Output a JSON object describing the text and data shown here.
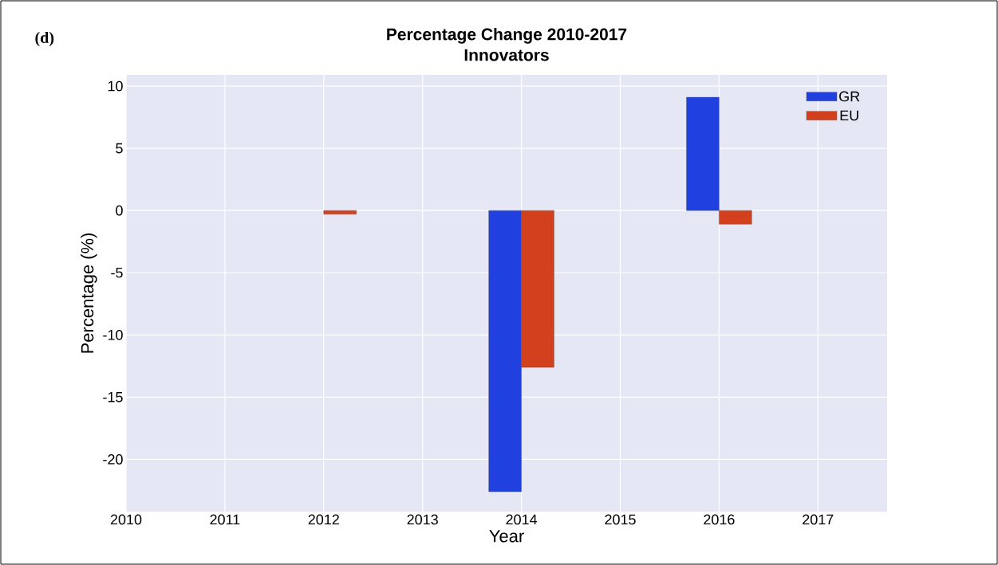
{
  "chart_data": {
    "type": "bar",
    "title": "Percentage Change 2010-2017",
    "subtitle": "Innovators",
    "xlabel": "Year",
    "ylabel": "Percentage (%)",
    "annotations": [
      "(d)"
    ],
    "x": [
      2012,
      2014,
      2016
    ],
    "series": [
      {
        "name": "GR",
        "color": "#2041e0",
        "values": [
          null,
          -22.6,
          9.1
        ]
      },
      {
        "name": "EU",
        "color": "#d2401e",
        "values": [
          -0.3,
          -12.6,
          -1.1
        ]
      }
    ],
    "xlim": [
      2010,
      2017.7
    ],
    "xticks": [
      2010,
      2011,
      2012,
      2013,
      2014,
      2015,
      2016,
      2017
    ],
    "ylim": [
      -24.2,
      10.9
    ],
    "yticks": [
      -20,
      -15,
      -10,
      -5,
      0,
      5,
      10
    ],
    "grid": true,
    "legend": "top right"
  }
}
